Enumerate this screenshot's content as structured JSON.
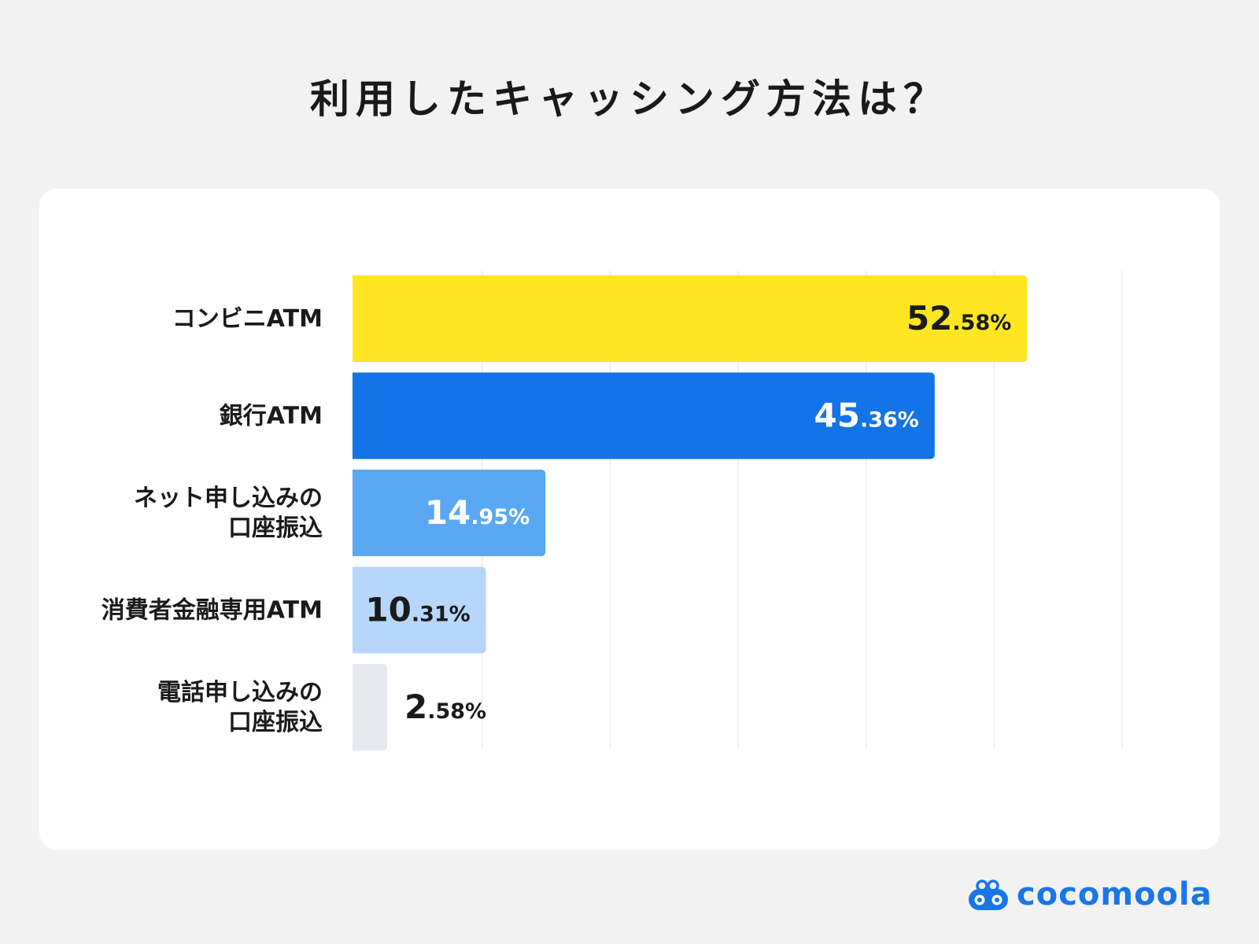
{
  "title": "利用したキャッシング方法は？",
  "brand": {
    "name": "cocomoola",
    "color": "#1976e8"
  },
  "chart_data": {
    "type": "bar",
    "orientation": "horizontal",
    "title": "利用したキャッシング方法は？",
    "categories": [
      "コンビニATM",
      "銀行ATM",
      "ネット申し込みの口座振込",
      "消費者金融専用ATM",
      "電話申し込みの口座振込"
    ],
    "category_lines": [
      [
        "コンビニATM"
      ],
      [
        "銀行ATM"
      ],
      [
        "ネット申し込みの",
        "口座振込"
      ],
      [
        "消費者金融専用ATM"
      ],
      [
        "電話申し込みの",
        "口座振込"
      ]
    ],
    "values": [
      52.58,
      45.36,
      14.95,
      10.31,
      2.58
    ],
    "value_labels": [
      {
        "int": "52",
        "dec": ".58%"
      },
      {
        "int": "45",
        "dec": ".36%"
      },
      {
        "int": "14",
        "dec": ".95%"
      },
      {
        "int": "10",
        "dec": ".31%"
      },
      {
        "int": "2",
        "dec": ".58%"
      }
    ],
    "colors": [
      "#ffe621",
      "#1473e6",
      "#5aa8f3",
      "#b6d7fb",
      "#e6e9ef"
    ],
    "label_colors": [
      "#1a1a1a",
      "#ffffff",
      "#ffffff",
      "#1a1a1a",
      "#1a1a1a"
    ],
    "xlim": [
      0,
      60
    ],
    "grid": true,
    "xlabel": "",
    "ylabel": ""
  }
}
